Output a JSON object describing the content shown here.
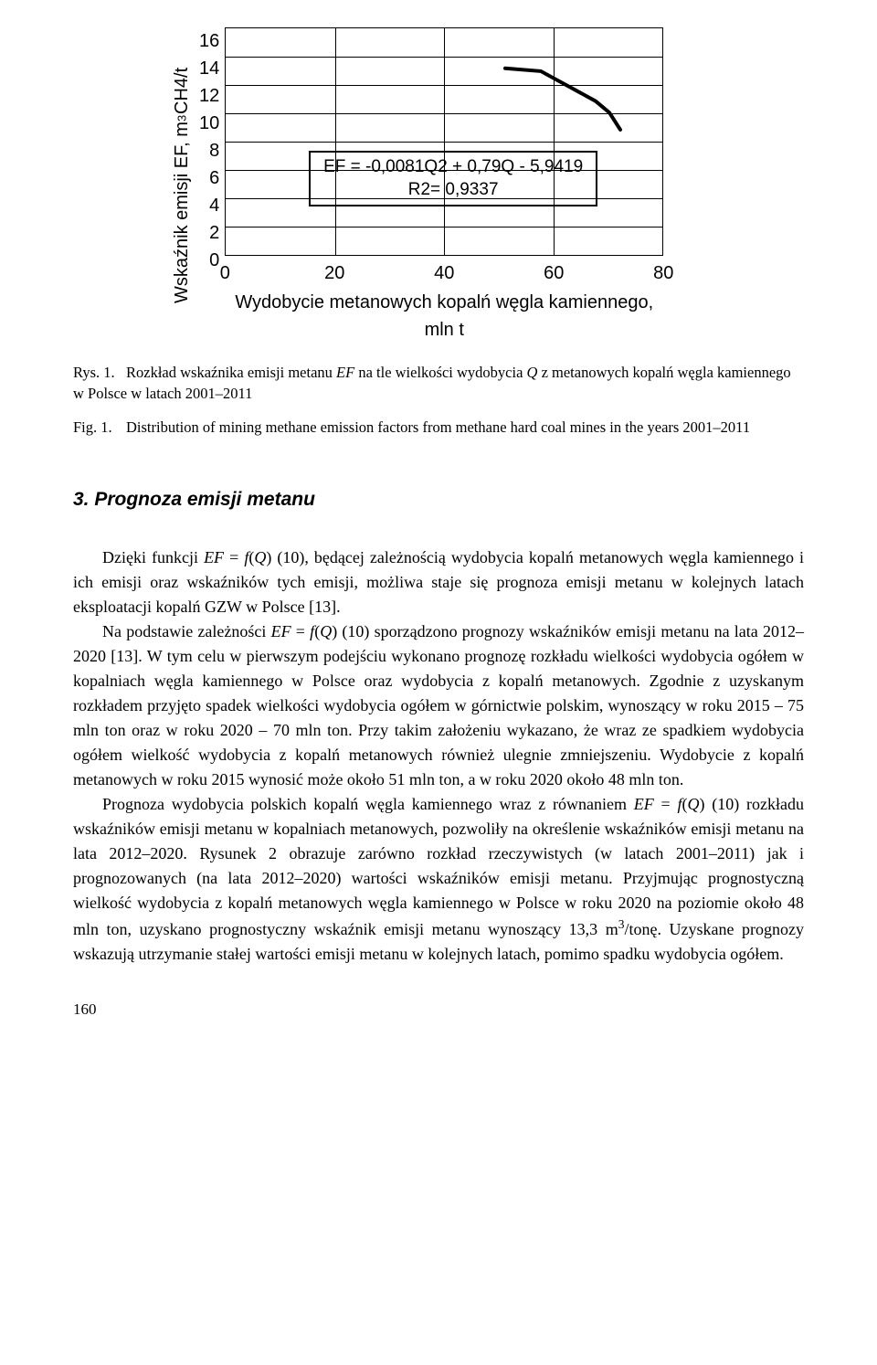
{
  "chart": {
    "type": "line",
    "ylabel_html": "Wskaźnik emisji EF, m<sup>3</sup> CH4/t",
    "yticks": [
      "16",
      "14",
      "12",
      "10",
      "8",
      "6",
      "4",
      "2",
      "0"
    ],
    "xticks": [
      "0",
      "20",
      "40",
      "60",
      "80"
    ],
    "xlabel": "Wydobycie metanowych kopalń węgla kamiennego, mln t",
    "xlim": [
      0,
      80
    ],
    "ylim": [
      0,
      16
    ],
    "equation_line1": "EF = -0,0081Q2 + 0,79Q - 5,9419",
    "equation_line2": "R2= 0,9337",
    "equation_box": {
      "left_pct": 19,
      "top_pct": 54
    },
    "gridlines_h_pct": [
      12.5,
      25,
      37.5,
      50,
      62.5,
      75,
      87.5
    ],
    "gridlines_v_pct": [
      25,
      50,
      75
    ],
    "curve_points": [
      {
        "x": 51,
        "y": 13.2
      },
      {
        "x": 57.5,
        "y": 13.0
      },
      {
        "x": 67.5,
        "y": 10.9
      },
      {
        "x": 70,
        "y": 10.1
      },
      {
        "x": 72,
        "y": 8.9
      }
    ],
    "curve_stroke": "#000000",
    "curve_width": 4,
    "background_color": "#ffffff",
    "grid_color": "#000000",
    "title_fontsize": 20,
    "label_fontsize": 20,
    "tick_fontsize": 20
  },
  "caption_pl": {
    "label": "Rys. 1.",
    "text": "Rozkład wskaźnika emisji metanu <em class=\"var\">EF</em> na tle wielkości wydobycia <em class=\"var\">Q</em> z metanowych kopalń węgla kamiennego w Polsce w latach 2001–2011"
  },
  "caption_en": {
    "label": "Fig. 1.",
    "text": "Distribution of mining methane emission factors from methane hard coal mines in the years 2001–2011"
  },
  "section": {
    "heading": "3. Prognoza emisji metanu"
  },
  "paragraphs": {
    "p1": "Dzięki funkcji <em class=\"var\">EF</em> = <em class=\"var\">f</em>(<em class=\"var\">Q</em>) (10), będącej zależnością wydobycia kopalń metanowych węgla kamiennego i ich emisji oraz wskaźników tych emisji, możliwa staje się prognoza emisji metanu w kolejnych latach eksploatacji kopalń GZW w Polsce [13].",
    "p2": "Na podstawie zależności <em class=\"var\">EF</em> = <em class=\"var\">f</em>(<em class=\"var\">Q</em>) (10) sporządzono prognozy wskaźników emisji metanu na lata 2012–2020 [13]. W tym celu w pierwszym podejściu wykonano prognozę rozkładu wielkości wydobycia ogółem w kopalniach węgla kamiennego w Polsce oraz wydobycia z kopalń metanowych. Zgodnie z uzyskanym rozkładem przyjęto spadek wielkości wydobycia ogółem w górnictwie polskim, wynoszący w roku 2015 – 75 mln ton oraz w roku 2020 – 70 mln ton. Przy takim założeniu wykazano, że wraz ze spadkiem wydobycia ogółem wielkość wydobycia z kopalń metanowych również ulegnie zmniejszeniu. Wydobycie z kopalń metanowych w roku 2015 wynosić może około 51 mln ton, a w roku 2020 około 48 mln ton.",
    "p3": "Prognoza wydobycia polskich kopalń węgla kamiennego wraz z równaniem <em class=\"var\">EF</em> = <em class=\"var\">f</em>(<em class=\"var\">Q</em>) (10) rozkładu wskaźników emisji metanu w kopalniach metanowych, pozwoliły na określenie wskaźników emisji metanu na lata 2012–2020. Rysunek 2 obrazuje zarówno rozkład rzeczywistych (w latach 2001–2011) jak i prognozowanych (na lata 2012–2020) wartości wskaźników emisji metanu. Przyjmując prognostyczną wielkość wydobycia z kopalń metanowych węgla kamiennego w Polsce w roku 2020 na poziomie około 48 mln ton, uzyskano prognostyczny wskaźnik emisji metanu wynoszący 13,3 m<sup>3</sup>/tonę. Uzyskane prognozy wskazują utrzymanie stałej wartości emisji metanu w kolejnych latach, pomimo spadku wydobycia ogółem."
  },
  "page_number": "160"
}
